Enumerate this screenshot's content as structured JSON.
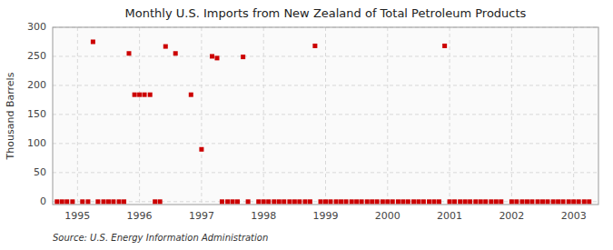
{
  "chart_data": {
    "type": "scatter",
    "title": "Monthly U.S. Imports from New Zealand of Total Petroleum Products",
    "y_label": "Thousand Barrels",
    "annotation": "Source: U.S. Energy Information Administration",
    "color": "#cc0000",
    "marker": "square",
    "grid": true,
    "xlim": [
      1994.6,
      2003.4
    ],
    "ylim": [
      -5,
      300
    ],
    "xticks": [
      1995,
      1996,
      1997,
      1998,
      1999,
      2000,
      2001,
      2002,
      2003
    ],
    "yticks": [
      0,
      50,
      100,
      150,
      200,
      250,
      300
    ],
    "x": [
      1995.25,
      1995.83,
      1995.92,
      1996.0,
      1996.08,
      1996.17,
      1996.42,
      1996.58,
      1996.83,
      1997.0,
      1997.17,
      1997.25,
      1997.67,
      1998.83,
      2000.92,
      1994.67,
      1994.75,
      1994.83,
      1994.92,
      1995.08,
      1995.17,
      1995.33,
      1995.42,
      1995.5,
      1995.58,
      1995.67,
      1995.75,
      1996.25,
      1996.33,
      1997.33,
      1997.42,
      1997.5,
      1997.58,
      1997.75,
      1997.92,
      1998.0,
      1998.08,
      1998.17,
      1998.25,
      1998.33,
      1998.42,
      1998.5,
      1998.58,
      1998.67,
      1998.75,
      1998.92,
      1999.0,
      1999.08,
      1999.17,
      1999.25,
      1999.33,
      1999.42,
      1999.5,
      1999.58,
      1999.67,
      1999.75,
      1999.83,
      1999.92,
      2000.0,
      2000.08,
      2000.17,
      2000.25,
      2000.33,
      2000.42,
      2000.5,
      2000.58,
      2000.67,
      2000.75,
      2000.83,
      2001.0,
      2001.08,
      2001.17,
      2001.25,
      2001.33,
      2001.42,
      2001.5,
      2001.58,
      2001.67,
      2001.75,
      2001.83,
      2002.0,
      2002.08,
      2002.17,
      2002.25,
      2002.33,
      2002.42,
      2002.5,
      2002.58,
      2002.67,
      2002.75,
      2002.83,
      2002.92,
      2003.0,
      2003.08,
      2003.17,
      2003.25
    ],
    "values": [
      275,
      255,
      184,
      184,
      184,
      184,
      267,
      255,
      184,
      90,
      250,
      247,
      249,
      268,
      268,
      0,
      0,
      0,
      0,
      0,
      0,
      0,
      0,
      0,
      0,
      0,
      0,
      0,
      0,
      0,
      0,
      0,
      0,
      0,
      0,
      0,
      0,
      0,
      0,
      0,
      0,
      0,
      0,
      0,
      0,
      0,
      0,
      0,
      0,
      0,
      0,
      0,
      0,
      0,
      0,
      0,
      0,
      0,
      0,
      0,
      0,
      0,
      0,
      0,
      0,
      0,
      0,
      0,
      0,
      0,
      0,
      0,
      0,
      0,
      0,
      0,
      0,
      0,
      0,
      0,
      0,
      0,
      0,
      0,
      0,
      0,
      0,
      0,
      0,
      0,
      0,
      0,
      0,
      0,
      0,
      0
    ]
  }
}
